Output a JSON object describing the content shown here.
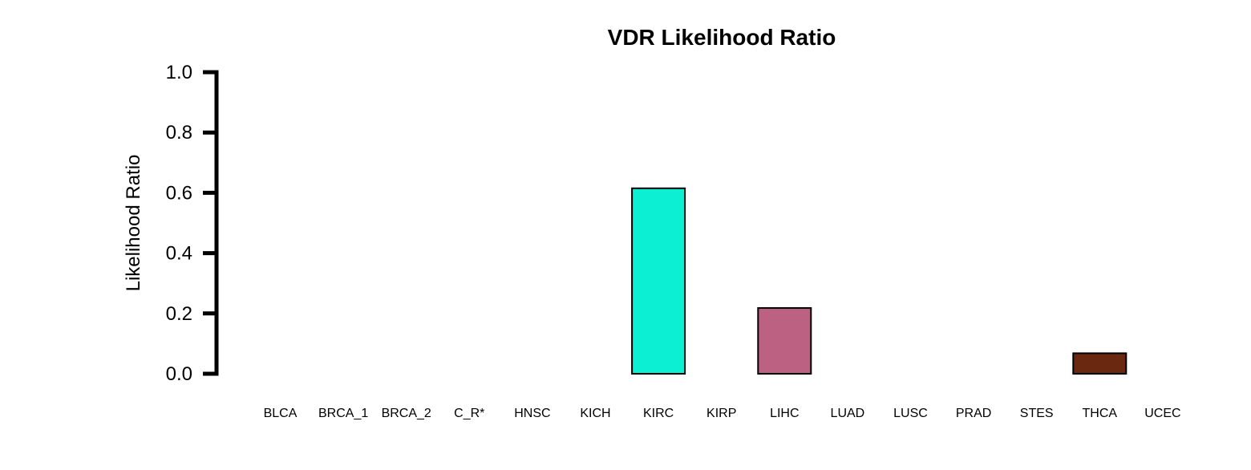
{
  "chart_data": {
    "type": "bar",
    "title": "VDR Likelihood Ratio",
    "xlabel": "",
    "ylabel": "Likelihood Ratio",
    "ylim": [
      0,
      1.0
    ],
    "yticks": [
      "0.0",
      "0.2",
      "0.4",
      "0.6",
      "0.8",
      "1.0"
    ],
    "grid": false,
    "legend": "none",
    "categories": [
      "BLCA",
      "BRCA_1",
      "BRCA_2",
      "C_R*",
      "HNSC",
      "KICH",
      "KIRC",
      "KIRP",
      "LIHC",
      "LUAD",
      "LUSC",
      "PRAD",
      "STES",
      "THCA",
      "UCEC"
    ],
    "values": [
      0,
      0,
      0,
      0,
      0,
      0,
      0.615,
      0,
      0.218,
      0,
      0,
      0,
      0,
      0.068,
      0
    ],
    "colors": [
      "#ffffff",
      "#ffffff",
      "#ffffff",
      "#ffffff",
      "#ffffff",
      "#ffffff",
      "#0cefd2",
      "#ffffff",
      "#bd6182",
      "#ffffff",
      "#ffffff",
      "#ffffff",
      "#ffffff",
      "#6b2810",
      "#ffffff"
    ]
  }
}
